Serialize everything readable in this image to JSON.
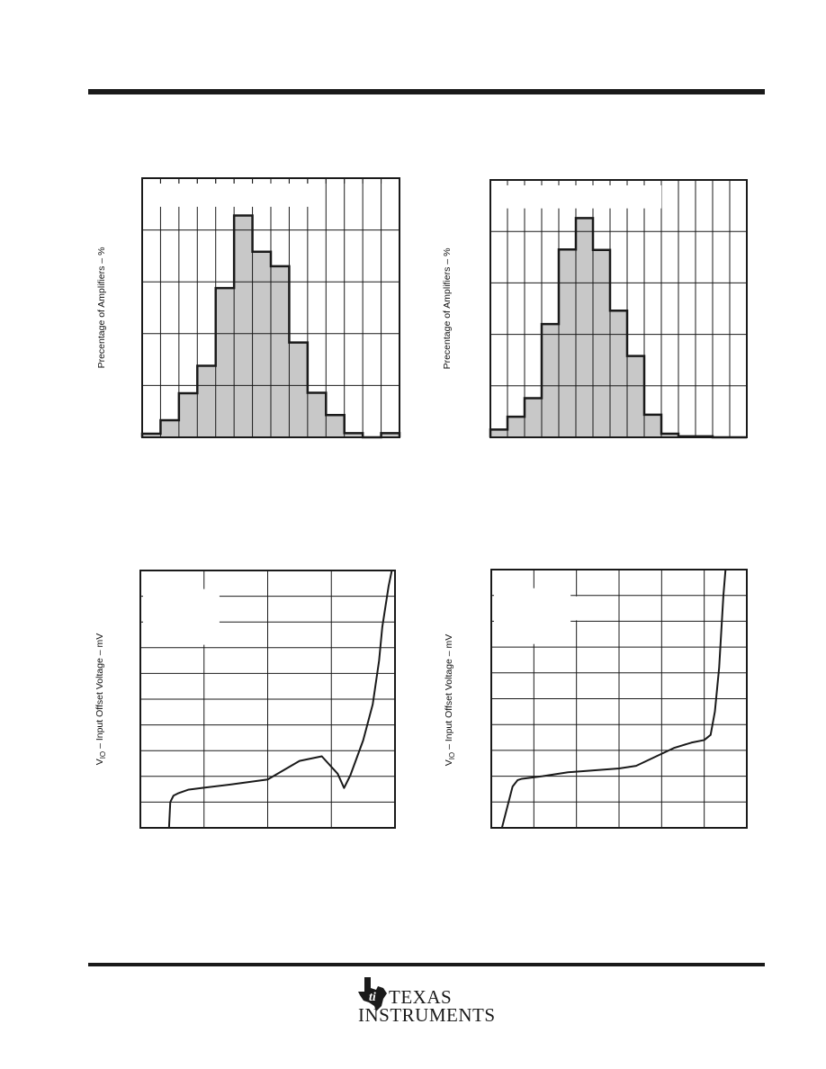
{
  "logo": {
    "line1": "TEXAS",
    "line2": "INSTRUMENTS",
    "icon": "ti-state-logo"
  },
  "chart_data": [
    {
      "type": "bar",
      "id": "hist-left",
      "ylabel": "Precentage of Amplifiers – %",
      "title": "",
      "xlabel": "",
      "bins": 14,
      "values": [
        0.7,
        3.3,
        8.5,
        13.8,
        28.8,
        42.8,
        35.8,
        33.0,
        18.3,
        8.6,
        4.3,
        0.8,
        0,
        0.8
      ],
      "ylim": [
        0,
        50
      ],
      "grid": true
    },
    {
      "type": "bar",
      "id": "hist-right",
      "ylabel": "Precentage of Amplifiers – %",
      "title": "",
      "xlabel": "",
      "bins": 15,
      "values": [
        1.5,
        4.0,
        7.6,
        22.0,
        36.5,
        42.6,
        36.4,
        24.6,
        15.8,
        4.4,
        0.7,
        0.2,
        0.2,
        0,
        0
      ],
      "ylim": [
        0,
        50
      ],
      "grid": true
    },
    {
      "type": "line",
      "id": "vio-left",
      "ylabel": "V_IO – Input Offset Voltage – mV",
      "title": "",
      "xlabel": "",
      "x": [
        0.45,
        0.47,
        0.52,
        0.6,
        0.75,
        1.0,
        1.4,
        2.0,
        2.5,
        2.85,
        3.1,
        3.2,
        3.3,
        3.5,
        3.65,
        3.75,
        3.8,
        3.9,
        3.95
      ],
      "y": [
        0,
        1.0,
        1.25,
        1.35,
        1.48,
        1.56,
        1.68,
        1.88,
        2.6,
        2.78,
        2.1,
        1.55,
        2.05,
        3.4,
        4.8,
        6.5,
        7.8,
        9.4,
        10.0
      ],
      "xlim": [
        0,
        4
      ],
      "ylim": [
        0,
        10
      ],
      "grid": true
    },
    {
      "type": "line",
      "id": "vio-right",
      "ylabel": "V_IO – Input Offset Voltage – mV",
      "title": "",
      "xlabel": "",
      "x": [
        0.25,
        0.5,
        0.62,
        0.72,
        1.2,
        1.8,
        3.0,
        3.4,
        4.3,
        4.7,
        5.0,
        5.15,
        5.25,
        5.35,
        5.4,
        5.45,
        5.5
      ],
      "y": [
        0,
        1.6,
        1.85,
        1.9,
        2.0,
        2.15,
        2.3,
        2.4,
        3.1,
        3.3,
        3.4,
        3.6,
        4.5,
        6.2,
        7.6,
        9.0,
        10.0
      ],
      "xlim": [
        0,
        6
      ],
      "ylim": [
        0,
        10
      ],
      "grid": true
    }
  ]
}
